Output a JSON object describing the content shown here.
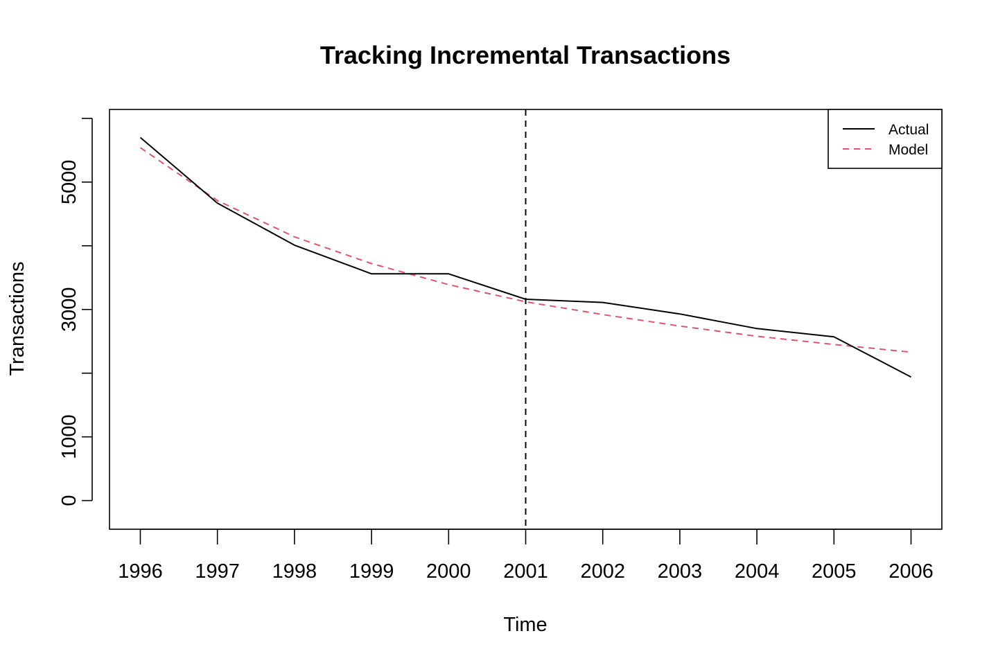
{
  "chart_data": {
    "type": "line",
    "title": "Tracking Incremental Transactions",
    "xlabel": "Time",
    "ylabel": "Transactions",
    "x": [
      1996,
      1997,
      1998,
      1999,
      2000,
      2001,
      2002,
      2003,
      2004,
      2005,
      2006
    ],
    "xlim": [
      1995.6,
      2006.4
    ],
    "ylim": [
      -450,
      6140
    ],
    "x_ticks": [
      "1996",
      "1997",
      "1998",
      "1999",
      "2000",
      "2001",
      "2002",
      "2003",
      "2004",
      "2005",
      "2006"
    ],
    "y_ticks": [
      0,
      1000,
      2000,
      3000,
      4000,
      5000,
      6000
    ],
    "y_tick_labels": [
      "0",
      "1000",
      "",
      "3000",
      "",
      "5000",
      ""
    ],
    "vline": {
      "x": 2001,
      "style": "dashed",
      "color": "#000000"
    },
    "series": [
      {
        "name": "Actual",
        "color": "#000000",
        "dash": "solid",
        "values": [
          5700,
          4670,
          4010,
          3560,
          3560,
          3160,
          3110,
          2930,
          2700,
          2570,
          1940
        ]
      },
      {
        "name": "Model",
        "color": "#DF536B",
        "dash": "dashed",
        "values": [
          5540,
          4710,
          4140,
          3720,
          3390,
          3120,
          2920,
          2740,
          2580,
          2450,
          2330
        ]
      }
    ],
    "grid": false,
    "legend": {
      "position": "top-right",
      "box": true
    }
  }
}
